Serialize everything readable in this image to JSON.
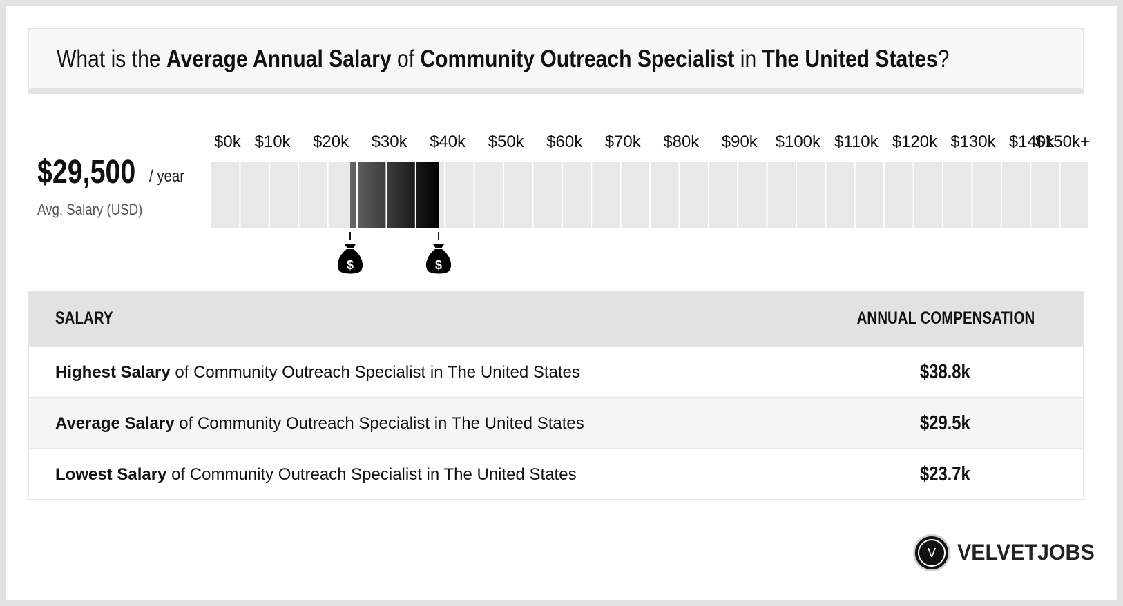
{
  "title": {
    "p1": "What is the ",
    "b1": "Average Annual Salary",
    "p2": " of ",
    "b2": "Community Outreach Specialist",
    "p3": " in ",
    "b3": "The United States",
    "p4": "?"
  },
  "summary": {
    "value": "$29,500",
    "unit": "/ year",
    "label": "Avg. Salary (USD)"
  },
  "chart_data": {
    "type": "bar",
    "ticks": [
      "$0k",
      "$10k",
      "$20k",
      "$30k",
      "$40k",
      "$50k",
      "$60k",
      "$70k",
      "$80k",
      "$90k",
      "$100k",
      "$110k",
      "$120k",
      "$130k",
      "$140k",
      "$150k+"
    ],
    "x_range": [
      0,
      150
    ],
    "unit": "k USD",
    "highlight_range": [
      23.7,
      38.8
    ],
    "average": 29.5,
    "markers": [
      23.7,
      38.8
    ],
    "marker_icon": "money-bag-icon"
  },
  "table": {
    "header_left": "SALARY",
    "header_right": "ANNUAL COMPENSATION",
    "rows": [
      {
        "bold": "Highest Salary",
        "text": " of Community Outreach Specialist in The United States",
        "value": "$38.8k"
      },
      {
        "bold": "Average Salary",
        "text": " of Community Outreach Specialist in The United States",
        "value": "$29.5k"
      },
      {
        "bold": "Lowest Salary",
        "text": " of Community Outreach Specialist in The United States",
        "value": "$23.7k"
      }
    ]
  },
  "brand": {
    "logo_letter": "V",
    "name": "VELVETJOBS"
  },
  "colors": {
    "background": "#e2e2e2",
    "track": "#e8e8e8",
    "bar_dark": "#000000",
    "bar_light": "#666666"
  }
}
